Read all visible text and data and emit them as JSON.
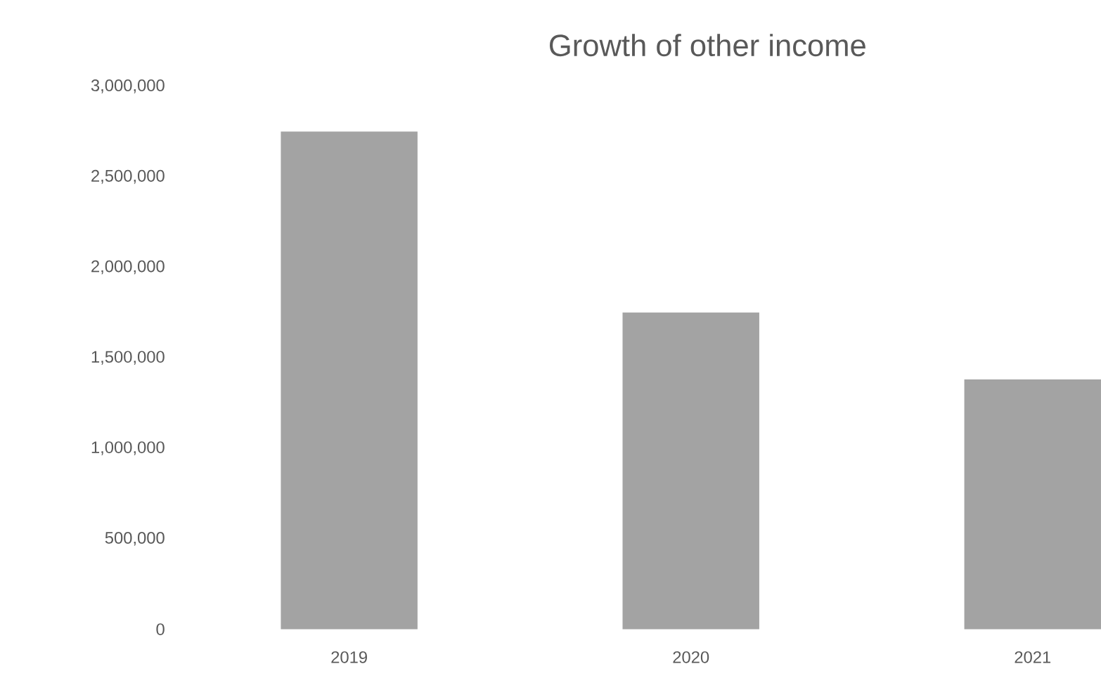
{
  "chart_data": {
    "type": "bar",
    "title": "Growth of other income",
    "categories": [
      "2019",
      "2020",
      "2021"
    ],
    "values": [
      2750000,
      1750000,
      1380000
    ],
    "color": "#a3a3a3",
    "ylim": [
      0,
      3000000
    ],
    "yticks": [
      {
        "value": 0,
        "label": "0"
      },
      {
        "value": 500000,
        "label": "500,000"
      },
      {
        "value": 1000000,
        "label": "1,000,000"
      },
      {
        "value": 1500000,
        "label": "1,500,000"
      },
      {
        "value": 2000000,
        "label": "2,000,000"
      },
      {
        "value": 2500000,
        "label": "2,500,000"
      },
      {
        "value": 3000000,
        "label": "3,000,000"
      }
    ]
  }
}
